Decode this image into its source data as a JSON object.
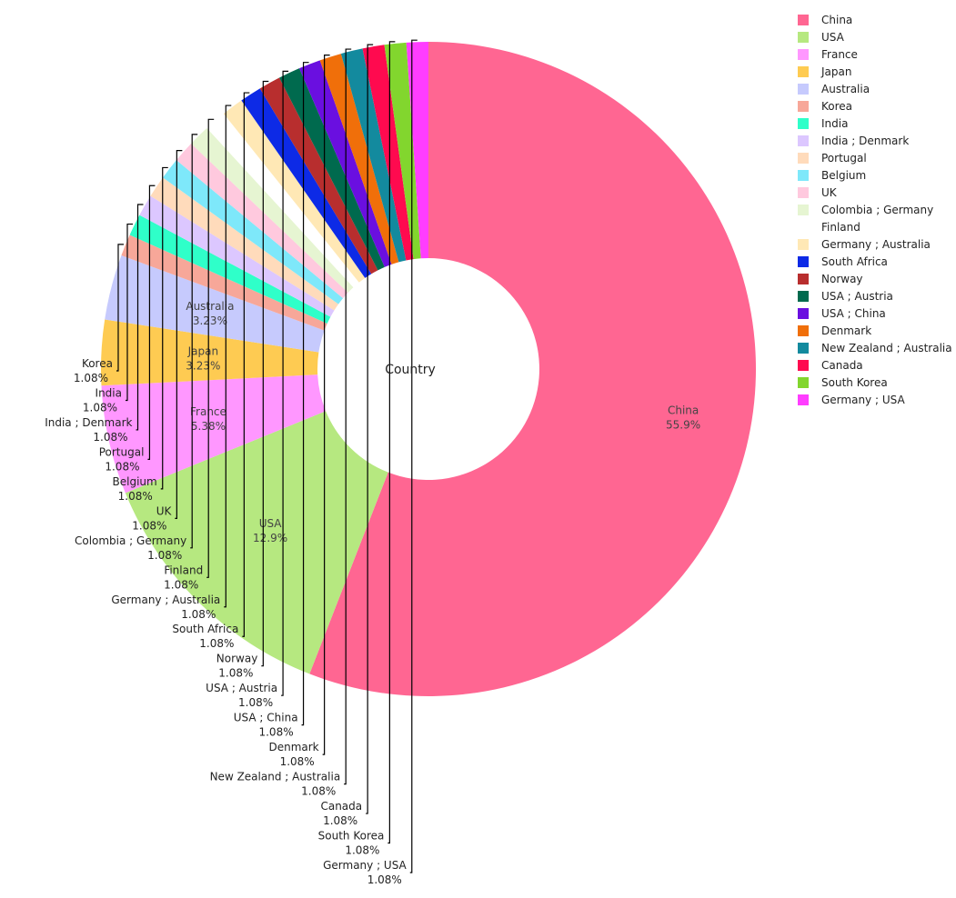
{
  "chart_data": {
    "type": "pie",
    "hole": true,
    "center_label": "Country",
    "legend_position": "top-right",
    "categories": [
      "China",
      "USA",
      "France",
      "Japan",
      "Australia",
      "Korea",
      "India",
      "India ; Denmark",
      "Portugal",
      "Belgium",
      "UK",
      "Colombia ; Germany",
      "Finland",
      "Germany ; Australia",
      "South Africa",
      "Norway",
      "USA ; Austria",
      "USA ; China",
      "Denmark",
      "New Zealand ; Australia",
      "Canada",
      "South Korea",
      "Germany ; USA"
    ],
    "values": [
      52,
      12,
      5,
      3,
      3,
      1,
      1,
      1,
      1,
      1,
      1,
      1,
      1,
      1,
      1,
      1,
      1,
      1,
      1,
      1,
      1,
      1,
      1
    ],
    "percent_labels": [
      "55.9%",
      "12.9%",
      "5.38%",
      "3.23%",
      "3.23%",
      "1.08%",
      "1.08%",
      "1.08%",
      "1.08%",
      "1.08%",
      "1.08%",
      "1.08%",
      "1.08%",
      "1.08%",
      "1.08%",
      "1.08%",
      "1.08%",
      "1.08%",
      "1.08%",
      "1.08%",
      "1.08%",
      "1.08%",
      "1.08%"
    ],
    "colors": [
      "#FF6692",
      "#B6E880",
      "#FF97FF",
      "#FECB52",
      "#C6CAFD",
      "#F7A799",
      "#2FFFC9",
      "#DCC7FF",
      "#FFDBBB",
      "#7EE8FA",
      "#FFC9DE",
      "#E6F5D2",
      "#FFFFFF",
      "#FFE8B5",
      "#0D2AE6",
      "#B82E2E",
      "#006A4E",
      "#6A0FE0",
      "#F06F0A",
      "#138A9E",
      "#FF0A4F",
      "#82D62E",
      "#FF3DFF"
    ]
  }
}
